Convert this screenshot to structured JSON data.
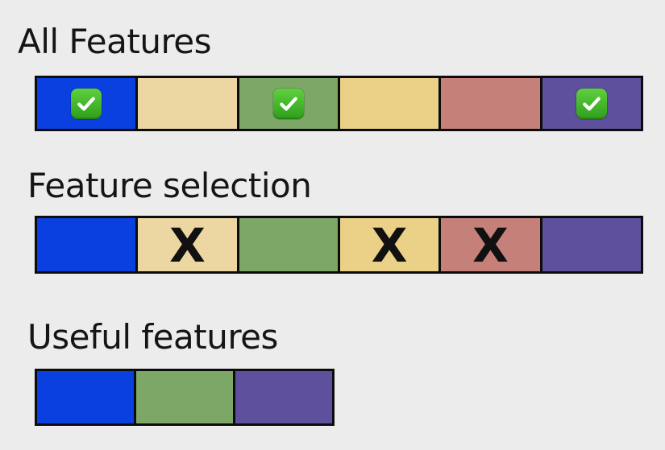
{
  "sections": {
    "all": {
      "title": "All Features",
      "cells": [
        {
          "color": "#0a3fe0",
          "mark": "check-icon"
        },
        {
          "color": "#ecd7a2",
          "mark": "none"
        },
        {
          "color": "#7da767",
          "mark": "check-icon"
        },
        {
          "color": "#ead187",
          "mark": "none"
        },
        {
          "color": "#c5807a",
          "mark": "none"
        },
        {
          "color": "#5e509d",
          "mark": "check-icon"
        }
      ]
    },
    "selection": {
      "title": "Feature selection",
      "cells": [
        {
          "color": "#0a3fe0",
          "mark": "none"
        },
        {
          "color": "#ecd7a2",
          "mark": "X"
        },
        {
          "color": "#7da767",
          "mark": "none"
        },
        {
          "color": "#ead187",
          "mark": "X"
        },
        {
          "color": "#c5807a",
          "mark": "X"
        },
        {
          "color": "#5e509d",
          "mark": "none"
        }
      ]
    },
    "useful": {
      "title": "Useful features",
      "cells": [
        {
          "color": "#0a3fe0",
          "mark": "none"
        },
        {
          "color": "#7da767",
          "mark": "none"
        },
        {
          "color": "#5e509d",
          "mark": "none"
        }
      ]
    }
  }
}
